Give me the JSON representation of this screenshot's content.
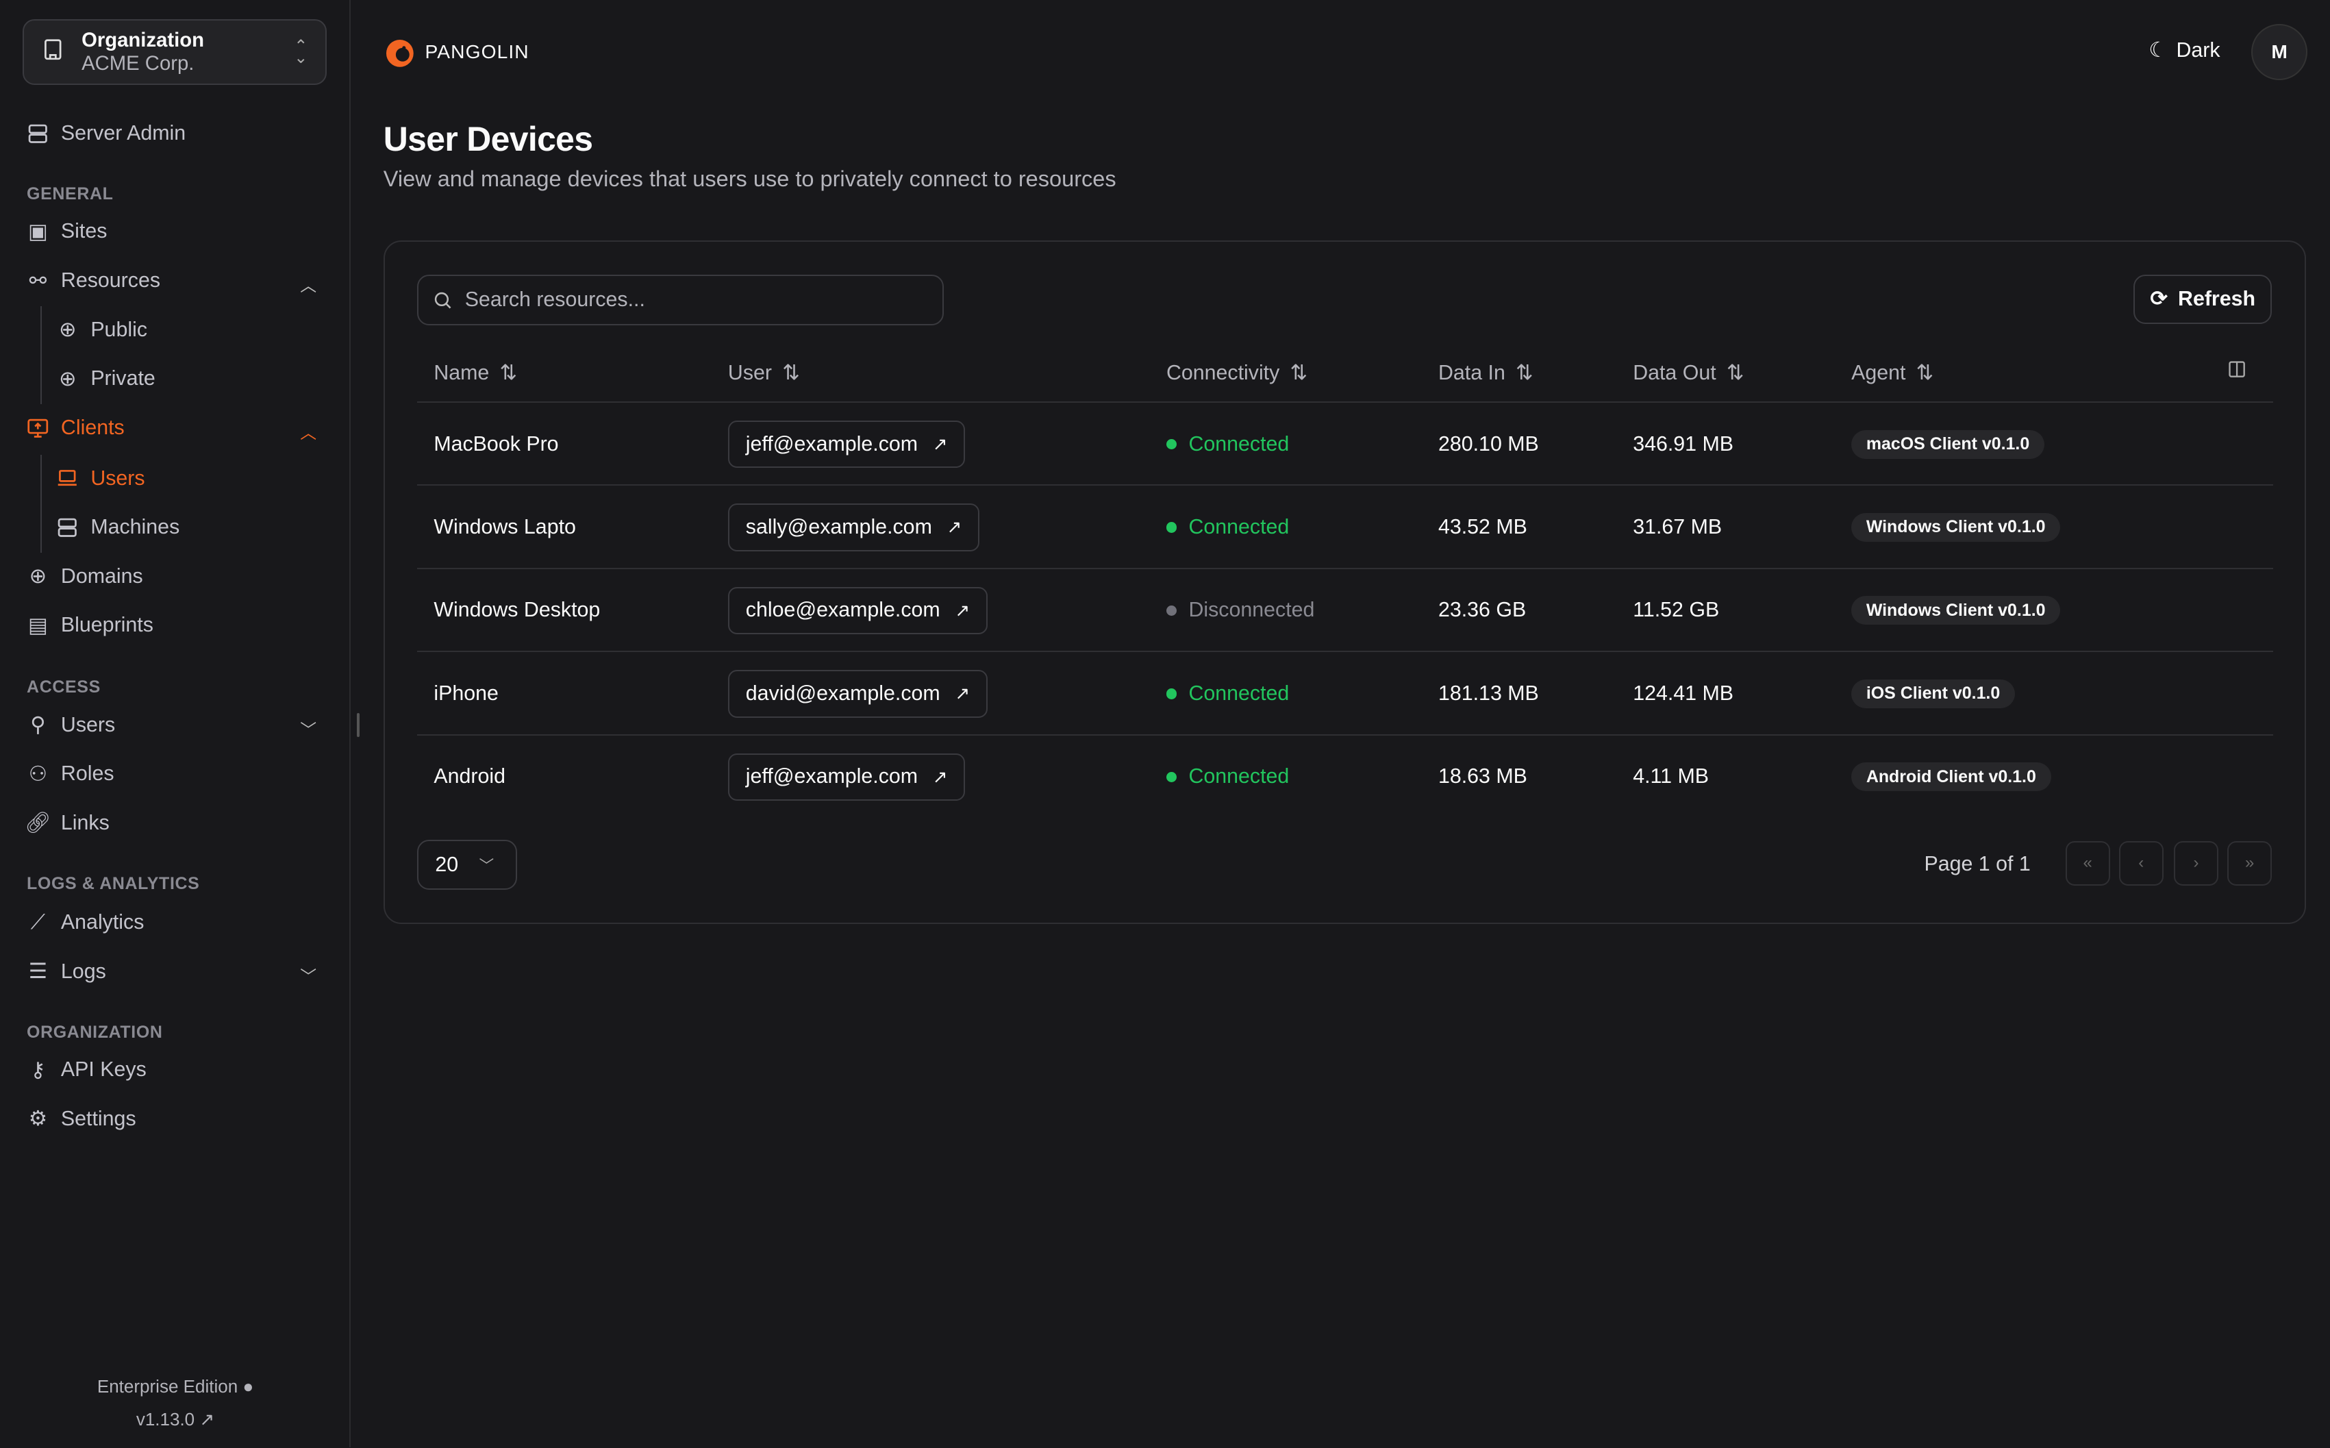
{
  "sidebar": {
    "org": {
      "label": "Organization",
      "name": "ACME Corp."
    },
    "server_admin": "Server Admin",
    "sections": {
      "general": "GENERAL",
      "access": "ACCESS",
      "logs": "LOGS & ANALYTICS",
      "organization": "ORGANIZATION"
    },
    "items": {
      "sites": "Sites",
      "resources": "Resources",
      "public": "Public",
      "private": "Private",
      "clients": "Clients",
      "users": "Users",
      "machines": "Machines",
      "domains": "Domains",
      "blueprints": "Blueprints",
      "access_users": "Users",
      "roles": "Roles",
      "links": "Links",
      "analytics": "Analytics",
      "logs": "Logs",
      "api_keys": "API Keys",
      "settings": "Settings"
    },
    "edition": "Enterprise Edition",
    "version": "v1.13.0"
  },
  "header": {
    "brand": "PANGOLIN",
    "theme": "Dark",
    "avatar": "M"
  },
  "page": {
    "title": "User Devices",
    "subtitle": "View and manage devices that users use to privately connect to resources"
  },
  "toolbar": {
    "search_placeholder": "Search resources...",
    "refresh": "Refresh"
  },
  "table": {
    "columns": [
      "Name",
      "User",
      "Connectivity",
      "Data In",
      "Data Out",
      "Agent"
    ],
    "rows": [
      {
        "name": "MacBook Pro",
        "user": "jeff@example.com",
        "status": "Connected",
        "data_in": "280.10 MB",
        "data_out": "346.91 MB",
        "agent": "macOS Client v0.1.0"
      },
      {
        "name": "Windows Lapto",
        "user": "sally@example.com",
        "status": "Connected",
        "data_in": "43.52 MB",
        "data_out": "31.67 MB",
        "agent": "Windows Client v0.1.0"
      },
      {
        "name": "Windows Desktop",
        "user": "chloe@example.com",
        "status": "Disconnected",
        "data_in": "23.36 GB",
        "data_out": "11.52 GB",
        "agent": "Windows Client v0.1.0"
      },
      {
        "name": "iPhone",
        "user": "david@example.com",
        "status": "Connected",
        "data_in": "181.13 MB",
        "data_out": "124.41 MB",
        "agent": "iOS Client v0.1.0"
      },
      {
        "name": "Android",
        "user": "jeff@example.com",
        "status": "Connected",
        "data_in": "18.63 MB",
        "data_out": "4.11 MB",
        "agent": "Android Client v0.1.0"
      }
    ]
  },
  "pagination": {
    "page_size": "20",
    "page_info": "Page 1 of 1"
  },
  "colors": {
    "accent": "#f26522",
    "connected": "#22c55e",
    "disconnected": "#71717a",
    "background": "#18181b"
  }
}
